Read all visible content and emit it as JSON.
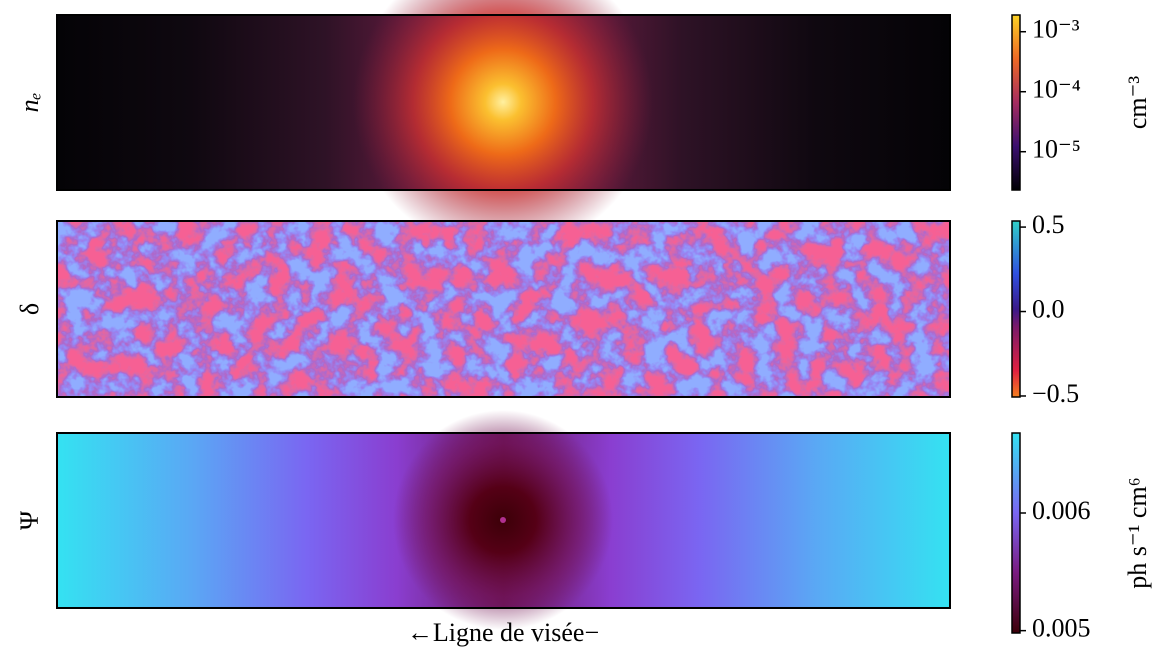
{
  "chart_data": [
    {
      "type": "image",
      "ylabel": "nₑ",
      "clabel": "cm⁻³",
      "cscale": "log",
      "clim": [
        2.3e-06,
        0.0019
      ],
      "cticks": [
        {
          "value": 0.001,
          "label": "10⁻³"
        },
        {
          "value": 0.0001,
          "label": "10⁻⁴"
        },
        {
          "value": 1e-05,
          "label": "10⁻⁵"
        }
      ]
    },
    {
      "type": "image",
      "ylabel": "δ",
      "cscale": "linear",
      "clim": [
        -0.506,
        0.536
      ],
      "cticks": [
        0.5,
        {
          "value": 0,
          "label": "0.0"
        },
        {
          "value": -0.5,
          "label": "−0.5"
        }
      ]
    },
    {
      "type": "image",
      "ylabel": "Ψ",
      "clabel": "ph s⁻¹ cm⁶",
      "cscale": "linear",
      "clim": [
        0.00498,
        0.00668
      ],
      "cticks": [
        0.006,
        0.005
      ],
      "xlabel": "←Ligne de visée−"
    }
  ]
}
